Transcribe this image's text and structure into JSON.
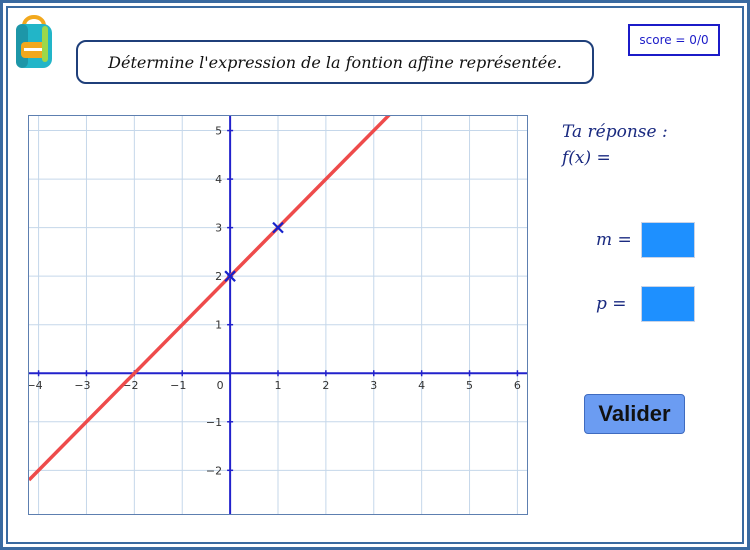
{
  "header": {
    "prompt": "Détermine l'expression de la fontion affine représentée.",
    "score": "score = 0/0"
  },
  "answer": {
    "title": "Ta réponse :",
    "fx": "f(x) =",
    "m_label": "m =",
    "p_label": "p =",
    "m_value": "",
    "p_value": "",
    "submit_label": "Valider"
  },
  "icons": {
    "logo": "backpack-icon"
  },
  "colors": {
    "frame": "#3a6aa0",
    "line": "#ee4b4b",
    "axis": "#2222cc",
    "input": "#1e90ff",
    "button": "#6b9cf2"
  },
  "chart_data": {
    "type": "line",
    "xlim": [
      -4.2,
      6.2
    ],
    "ylim": [
      -2.9,
      5.3
    ],
    "x_ticks": [
      -4,
      -3,
      -2,
      -1,
      0,
      1,
      2,
      3,
      4,
      5,
      6
    ],
    "y_ticks": [
      -2,
      -1,
      1,
      2,
      3,
      4,
      5
    ],
    "grid": true,
    "series": [
      {
        "slope": 1,
        "intercept": 2
      }
    ],
    "points": [
      {
        "x": 0,
        "y": 2
      },
      {
        "x": 1,
        "y": 3
      }
    ]
  }
}
